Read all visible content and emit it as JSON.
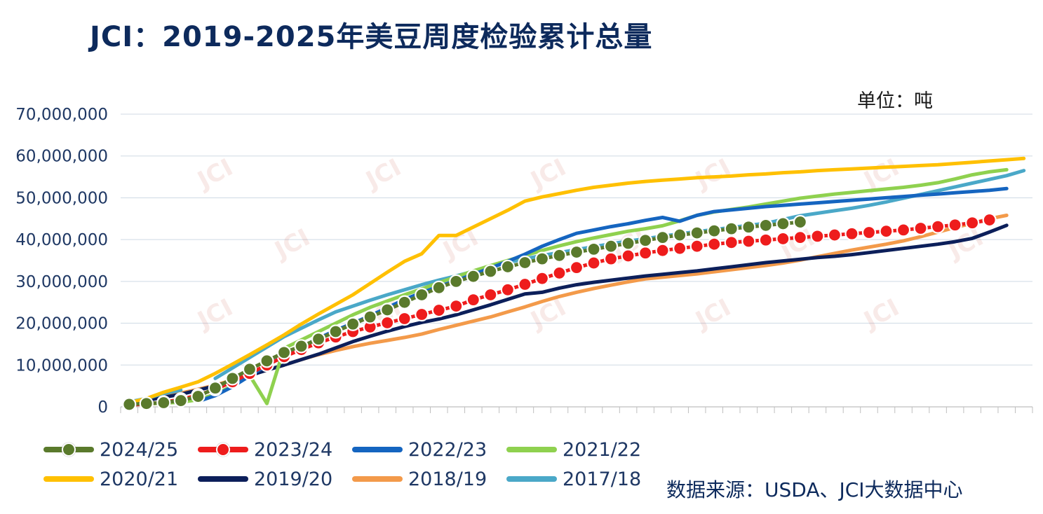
{
  "title": "JCI：2019-2025年美豆周度检验累计总量",
  "unit_label": "单位：吨",
  "source": "数据来源：USDA、JCI大数据中心",
  "watermark": "JCI",
  "chart_data": {
    "type": "line",
    "ylim": [
      0,
      70000000
    ],
    "yticks": [
      "0",
      "10,000,000",
      "20,000,000",
      "30,000,000",
      "40,000,000",
      "50,000,000",
      "60,000,000",
      "70,000,000"
    ],
    "ytick_values": [
      0,
      10000000,
      20000000,
      30000000,
      40000000,
      50000000,
      60000000,
      70000000
    ],
    "x_weeks": 53,
    "grid": true,
    "legend_position": "bottom",
    "series": [
      {
        "name": "2024/25",
        "color": "#5a7a2c",
        "style": "dot-line",
        "dot_color": "#5a7a2c",
        "values": [
          600000,
          800000,
          1000000,
          1500000,
          2500000,
          4500000,
          6800000,
          9000000,
          11000000,
          13000000,
          14500000,
          16200000,
          18000000,
          19800000,
          21500000,
          23200000,
          25000000,
          26800000,
          28500000,
          30000000,
          31200000,
          32400000,
          33500000,
          34500000,
          35400000,
          36200000,
          37000000,
          37700000,
          38400000,
          39100000,
          39800000,
          40500000,
          41100000,
          41600000,
          42100000,
          42600000,
          43000000,
          43400000,
          43800000,
          44200000
        ]
      },
      {
        "name": "2023/24",
        "color": "#ee1c1c",
        "style": "dot-line",
        "dot_color": "#ee1c1c",
        "values": [
          400000,
          700000,
          1100000,
          1800000,
          2800000,
          4200000,
          6000000,
          8000000,
          10000000,
          12000000,
          13700000,
          15300000,
          16700000,
          18000000,
          19100000,
          20100000,
          21100000,
          22100000,
          23100000,
          24100000,
          25600000,
          26800000,
          28000000,
          29300000,
          30700000,
          32000000,
          33300000,
          34400000,
          35400000,
          36100000,
          36800000,
          37400000,
          37900000,
          38400000,
          38900000,
          39300000,
          39600000,
          39900000,
          40200000,
          40500000,
          40800000,
          41100000,
          41400000,
          41700000,
          42000000,
          42300000,
          42700000,
          43100000,
          43500000,
          44000000,
          44700000
        ]
      },
      {
        "name": "2022/23",
        "color": "#1565c0",
        "style": "line",
        "values": [
          null,
          null,
          null,
          null,
          1300000,
          2700000,
          4800000,
          7400000,
          9900000,
          12200000,
          14300000,
          16400000,
          18300000,
          20000000,
          21800000,
          23700000,
          25700000,
          27300000,
          28800000,
          30200000,
          31700000,
          33200000,
          34800000,
          36500000,
          38400000,
          40000000,
          41500000,
          42300000,
          43100000,
          43800000,
          44600000,
          45300000,
          44400000,
          45800000,
          46700000,
          47100000,
          47500000,
          47900000,
          48200000,
          48500000,
          48800000,
          49100000,
          49400000,
          49700000,
          50000000,
          50300000,
          50600000,
          50900000,
          51200000,
          51500000,
          51800000,
          52200000
        ]
      },
      {
        "name": "2021/22",
        "color": "#8fd14f",
        "style": "line",
        "values": [
          600000,
          700000,
          900000,
          1100000,
          1700000,
          3000000,
          5000000,
          7500000,
          800000,
          14000000,
          16000000,
          18000000,
          20000000,
          22000000,
          23800000,
          25300000,
          26800000,
          28200000,
          29700000,
          31100000,
          32500000,
          33800000,
          35000000,
          36200000,
          37400000,
          38500000,
          39500000,
          40400000,
          41200000,
          42000000,
          42600000,
          43300000,
          44500000,
          45800000,
          46600000,
          47200000,
          47800000,
          48500000,
          49200000,
          49900000,
          50400000,
          50900000,
          51300000,
          51700000,
          52100000,
          52500000,
          53000000,
          53600000,
          54500000,
          55500000,
          56200000,
          56700000
        ]
      },
      {
        "name": "2020/21",
        "color": "#ffc000",
        "style": "line",
        "values": [
          1000000,
          2000000,
          3500000,
          4700000,
          6000000,
          8000000,
          10200000,
          12500000,
          14800000,
          17200000,
          19800000,
          22200000,
          24500000,
          26800000,
          29500000,
          32200000,
          34800000,
          36600000,
          41000000,
          41000000,
          43000000,
          45000000,
          47000000,
          49200000,
          50200000,
          51000000,
          51800000,
          52500000,
          53000000,
          53500000,
          53900000,
          54200000,
          54500000,
          54800000,
          55000000,
          55200000,
          55500000,
          55700000,
          56000000,
          56200000,
          56500000,
          56700000,
          56900000,
          57100000,
          57300000,
          57500000,
          57700000,
          57900000,
          58200000,
          58500000,
          58800000,
          59100000,
          59400000
        ]
      },
      {
        "name": "2019/20",
        "color": "#0c1f5a",
        "style": "line",
        "values": [
          800000,
          1500000,
          2300000,
          3000000,
          4000000,
          5000000,
          6200000,
          7500000,
          8800000,
          10000000,
          11300000,
          12600000,
          14100000,
          15600000,
          16900000,
          18100000,
          19200000,
          20200000,
          21000000,
          22000000,
          23200000,
          24400000,
          25700000,
          27000000,
          27400000,
          28400000,
          29200000,
          29800000,
          30300000,
          30800000,
          31300000,
          31700000,
          32100000,
          32500000,
          33000000,
          33500000,
          34000000,
          34500000,
          34900000,
          35300000,
          35700000,
          36000000,
          36400000,
          36900000,
          37400000,
          37900000,
          38400000,
          38900000,
          39500000,
          40300000,
          41800000,
          43400000
        ]
      },
      {
        "name": "2018/19",
        "color": "#f39a4a",
        "style": "line",
        "values": [
          1000000,
          1800000,
          2600000,
          3300000,
          4200000,
          5200000,
          6400000,
          7600000,
          8800000,
          10000000,
          11300000,
          12500000,
          13500000,
          14400000,
          15200000,
          15900000,
          16600000,
          17400000,
          18500000,
          19500000,
          20500000,
          21500000,
          22700000,
          23900000,
          25200000,
          26400000,
          27400000,
          28300000,
          29100000,
          29900000,
          30600000,
          31000000,
          31400000,
          31800000,
          32300000,
          32800000,
          33300000,
          33800000,
          34400000,
          35100000,
          35900000,
          36700000,
          37500000,
          38200000,
          38900000,
          39700000,
          40700000,
          41800000,
          42900000,
          43900000,
          45000000,
          45800000
        ]
      },
      {
        "name": "2017/18",
        "color": "#4aa8c8",
        "style": "line",
        "values": [
          1200000,
          2000000,
          3200000,
          4000000,
          null,
          6800000,
          9300000,
          11800000,
          14300000,
          16800000,
          18800000,
          20800000,
          22700000,
          24100000,
          25500000,
          26800000,
          28000000,
          29200000,
          30300000,
          31300000,
          32400000,
          33500000,
          34500000,
          35400000,
          36200000,
          36900000,
          37600000,
          38300000,
          39000000,
          39600000,
          40200000,
          40800000,
          41400000,
          41900000,
          42400000,
          42900000,
          43400000,
          43900000,
          44800000,
          45700000,
          46300000,
          46900000,
          47500000,
          48200000,
          49000000,
          49900000,
          50800000,
          51700000,
          52600000,
          53500000,
          54400000,
          55300000,
          56500000
        ]
      }
    ]
  }
}
